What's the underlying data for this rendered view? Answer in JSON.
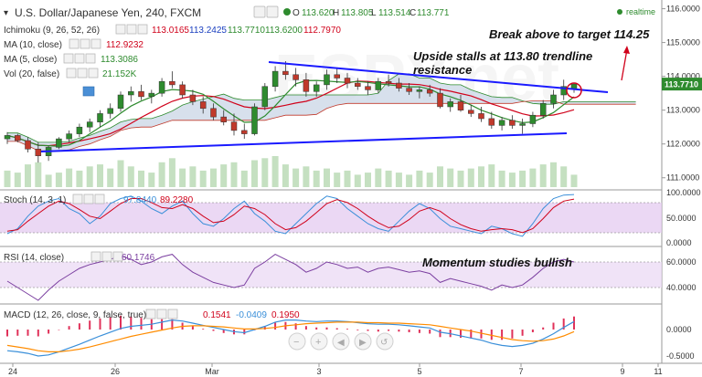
{
  "chart_data": {
    "type": "candlestick",
    "symbol_title": "U.S. Dollar/Japanese Yen, 240, FXCM",
    "ohlc_label": {
      "o": "O",
      "h": "H",
      "l": "L",
      "c": "C",
      "open": "113.620",
      "high": "113.805",
      "low": "113.514",
      "close": "113.771"
    },
    "realtime_label": "realtime",
    "last_price": "113.7710",
    "price_axis": {
      "ticks": [
        "116.0000",
        "115.0000",
        "114.0000",
        "113.0000",
        "112.0000",
        "111.0000"
      ],
      "range": [
        110.75,
        116.15
      ]
    },
    "x_axis": {
      "ticks": [
        "24",
        "26",
        "Mar",
        "3",
        "5",
        "7",
        "9",
        "11"
      ]
    },
    "candles": [
      [
        112.15,
        112.35,
        112.0,
        112.25
      ],
      [
        112.25,
        112.3,
        112.05,
        112.1
      ],
      [
        112.1,
        112.2,
        111.75,
        111.85
      ],
      [
        111.85,
        112.05,
        111.45,
        111.65
      ],
      [
        111.65,
        111.95,
        111.5,
        111.9
      ],
      [
        111.9,
        112.2,
        111.85,
        112.15
      ],
      [
        112.15,
        112.4,
        112.05,
        112.3
      ],
      [
        112.3,
        112.6,
        112.2,
        112.5
      ],
      [
        112.5,
        112.75,
        112.35,
        112.65
      ],
      [
        112.65,
        113.0,
        112.5,
        112.9
      ],
      [
        112.9,
        113.2,
        112.75,
        113.05
      ],
      [
        113.05,
        113.55,
        112.95,
        113.45
      ],
      [
        113.45,
        113.7,
        113.25,
        113.55
      ],
      [
        113.55,
        113.75,
        113.3,
        113.4
      ],
      [
        113.4,
        113.6,
        113.2,
        113.5
      ],
      [
        113.5,
        113.95,
        113.4,
        113.85
      ],
      [
        113.85,
        114.15,
        113.65,
        113.75
      ],
      [
        113.75,
        113.85,
        113.35,
        113.45
      ],
      [
        113.45,
        113.6,
        113.15,
        113.25
      ],
      [
        113.25,
        113.4,
        112.9,
        113.05
      ],
      [
        113.05,
        113.2,
        112.7,
        112.8
      ],
      [
        112.8,
        113.0,
        112.55,
        112.65
      ],
      [
        112.65,
        112.9,
        112.25,
        112.4
      ],
      [
        112.4,
        112.6,
        112.15,
        112.3
      ],
      [
        112.3,
        113.2,
        112.25,
        113.1
      ],
      [
        113.1,
        113.8,
        113.0,
        113.7
      ],
      [
        113.7,
        114.3,
        113.55,
        114.15
      ],
      [
        114.15,
        114.45,
        113.9,
        114.05
      ],
      [
        114.05,
        114.25,
        113.7,
        113.9
      ],
      [
        113.9,
        114.1,
        113.4,
        113.55
      ],
      [
        113.55,
        113.85,
        113.4,
        113.75
      ],
      [
        113.75,
        114.2,
        113.6,
        114.05
      ],
      [
        114.05,
        114.25,
        113.8,
        113.95
      ],
      [
        113.95,
        114.1,
        113.65,
        113.8
      ],
      [
        113.8,
        113.95,
        113.6,
        113.7
      ],
      [
        113.7,
        113.85,
        113.45,
        113.6
      ],
      [
        113.6,
        113.95,
        113.5,
        113.85
      ],
      [
        113.85,
        114.05,
        113.7,
        113.8
      ],
      [
        113.8,
        113.95,
        113.55,
        113.65
      ],
      [
        113.65,
        113.8,
        113.45,
        113.55
      ],
      [
        113.55,
        113.7,
        113.35,
        113.6
      ],
      [
        113.6,
        113.75,
        113.4,
        113.5
      ],
      [
        113.5,
        113.65,
        113.05,
        113.1
      ],
      [
        113.1,
        113.35,
        112.95,
        113.25
      ],
      [
        113.25,
        113.45,
        112.95,
        113.0
      ],
      [
        113.0,
        113.15,
        112.8,
        112.9
      ],
      [
        112.9,
        113.1,
        112.65,
        112.75
      ],
      [
        112.75,
        112.95,
        112.45,
        112.55
      ],
      [
        112.55,
        112.8,
        112.4,
        112.7
      ],
      [
        112.7,
        112.85,
        112.45,
        112.55
      ],
      [
        112.55,
        112.75,
        112.3,
        112.6
      ],
      [
        112.6,
        112.95,
        112.5,
        112.85
      ],
      [
        112.85,
        113.3,
        112.75,
        113.2
      ],
      [
        113.2,
        113.6,
        113.05,
        113.45
      ],
      [
        113.45,
        113.9,
        113.3,
        113.7
      ],
      [
        113.62,
        113.805,
        113.514,
        113.771
      ]
    ],
    "volume": [
      40,
      35,
      55,
      60,
      30,
      35,
      45,
      40,
      50,
      55,
      45,
      65,
      50,
      40,
      35,
      60,
      70,
      45,
      50,
      40,
      45,
      55,
      60,
      40,
      65,
      70,
      75,
      55,
      45,
      50,
      40,
      45,
      35,
      40,
      30,
      35,
      45,
      40,
      35,
      30,
      40,
      35,
      50,
      45,
      40,
      45,
      50,
      55,
      40,
      35,
      40,
      45,
      55,
      60,
      50,
      30
    ],
    "indicators": {
      "ichimoku": {
        "label": "Ichimoku (9, 26, 52, 26)",
        "values": [
          "113.0165",
          "113.2425",
          "113.7710",
          "113.6200",
          "112.7970"
        ]
      },
      "ma10": {
        "label": "MA (10, close)",
        "value": "112.9232",
        "color": "#d0021b"
      },
      "ma5": {
        "label": "MA (5, close)",
        "value": "113.3086",
        "color": "#2e8b2e"
      },
      "vol": {
        "label": "Vol (20, false)",
        "value": "21.152K",
        "color": "#2e8b2e"
      },
      "stoch": {
        "label": "Stoch (14, 3, 1)",
        "k": "97.8440",
        "d": "89.2280",
        "ticks": [
          "100.0000",
          "50.0000",
          "0.0000"
        ]
      },
      "rsi": {
        "label": "RSI (14, close)",
        "value": "60.1746",
        "ticks": [
          "60.0000",
          "40.0000"
        ]
      },
      "macd": {
        "label": "MACD (12, 26, close, 9, false, true)",
        "values": [
          "0.1541",
          "-0.0409",
          "0.1950"
        ],
        "ticks": [
          "0.0000",
          "-0.5000"
        ]
      }
    },
    "stoch_k": [
      20,
      30,
      55,
      75,
      85,
      90,
      70,
      60,
      40,
      55,
      80,
      90,
      95,
      85,
      70,
      60,
      75,
      85,
      60,
      40,
      35,
      50,
      70,
      85,
      60,
      45,
      25,
      20,
      40,
      60,
      80,
      95,
      90,
      70,
      55,
      40,
      30,
      25,
      45,
      65,
      80,
      70,
      50,
      35,
      30,
      25,
      20,
      35,
      30,
      20,
      15,
      40,
      70,
      90,
      97,
      98
    ],
    "stoch_d": [
      25,
      28,
      45,
      60,
      75,
      85,
      80,
      68,
      55,
      50,
      65,
      80,
      90,
      90,
      82,
      72,
      70,
      78,
      70,
      55,
      42,
      45,
      58,
      75,
      70,
      58,
      40,
      28,
      32,
      45,
      62,
      80,
      88,
      82,
      70,
      55,
      42,
      32,
      35,
      48,
      65,
      72,
      65,
      50,
      38,
      30,
      25,
      28,
      30,
      28,
      22,
      30,
      50,
      72,
      85,
      89
    ],
    "rsi_vals": [
      45,
      40,
      35,
      30,
      38,
      45,
      50,
      55,
      58,
      60,
      62,
      65,
      62,
      58,
      60,
      64,
      66,
      58,
      52,
      48,
      44,
      42,
      40,
      42,
      55,
      60,
      66,
      62,
      58,
      52,
      55,
      60,
      58,
      55,
      56,
      52,
      55,
      56,
      54,
      52,
      53,
      51,
      44,
      47,
      45,
      43,
      41,
      38,
      42,
      40,
      42,
      48,
      55,
      60,
      62,
      60
    ],
    "macd_line": [
      -0.4,
      -0.42,
      -0.45,
      -0.5,
      -0.48,
      -0.42,
      -0.35,
      -0.28,
      -0.2,
      -0.12,
      -0.05,
      0.02,
      0.06,
      0.08,
      0.1,
      0.14,
      0.18,
      0.16,
      0.12,
      0.08,
      0.04,
      0.0,
      -0.04,
      -0.06,
      0.0,
      0.06,
      0.14,
      0.18,
      0.18,
      0.16,
      0.15,
      0.16,
      0.16,
      0.15,
      0.13,
      0.11,
      0.1,
      0.1,
      0.09,
      0.07,
      0.05,
      0.03,
      -0.05,
      -0.08,
      -0.12,
      -0.16,
      -0.2,
      -0.26,
      -0.3,
      -0.32,
      -0.3,
      -0.26,
      -0.18,
      -0.08,
      0.04,
      0.15
    ],
    "macd_signal": [
      -0.3,
      -0.33,
      -0.36,
      -0.4,
      -0.42,
      -0.42,
      -0.4,
      -0.37,
      -0.33,
      -0.28,
      -0.23,
      -0.18,
      -0.13,
      -0.09,
      -0.05,
      -0.01,
      0.03,
      0.06,
      0.07,
      0.07,
      0.06,
      0.05,
      0.03,
      0.01,
      0.01,
      0.02,
      0.04,
      0.07,
      0.09,
      0.11,
      0.12,
      0.13,
      0.14,
      0.14,
      0.14,
      0.13,
      0.13,
      0.12,
      0.12,
      0.11,
      0.1,
      0.09,
      0.06,
      0.03,
      0.0,
      -0.03,
      -0.07,
      -0.11,
      -0.15,
      -0.19,
      -0.21,
      -0.22,
      -0.21,
      -0.18,
      -0.12,
      -0.04
    ],
    "annotations": {
      "breakout": "Break above to target 114.25",
      "stalls_line1": "Upside stalls at 113.80 trendline",
      "stalls_line2": "resistance",
      "momentum": "Momentum studies bullish"
    },
    "watermark": "ESPY.net"
  },
  "colors": {
    "bull": "#2e8b2e",
    "bear": "#c0392b",
    "trend": "#1a1aff",
    "cloud": "#c9d6e6",
    "ma10": "#d0021b",
    "ma5": "#2e8b2e",
    "stoch_band": "#e2c8ef",
    "rsi_band": "#ead7f4",
    "macd_line": "#3a8fd9",
    "macd_signal": "#ff8c00"
  },
  "icons": [
    "eye-icon",
    "gear-icon",
    "close-icon",
    "bars-icon",
    "zoom-out-icon",
    "zoom-in-icon",
    "scroll-left-icon",
    "scroll-right-icon",
    "reset-icon"
  ]
}
